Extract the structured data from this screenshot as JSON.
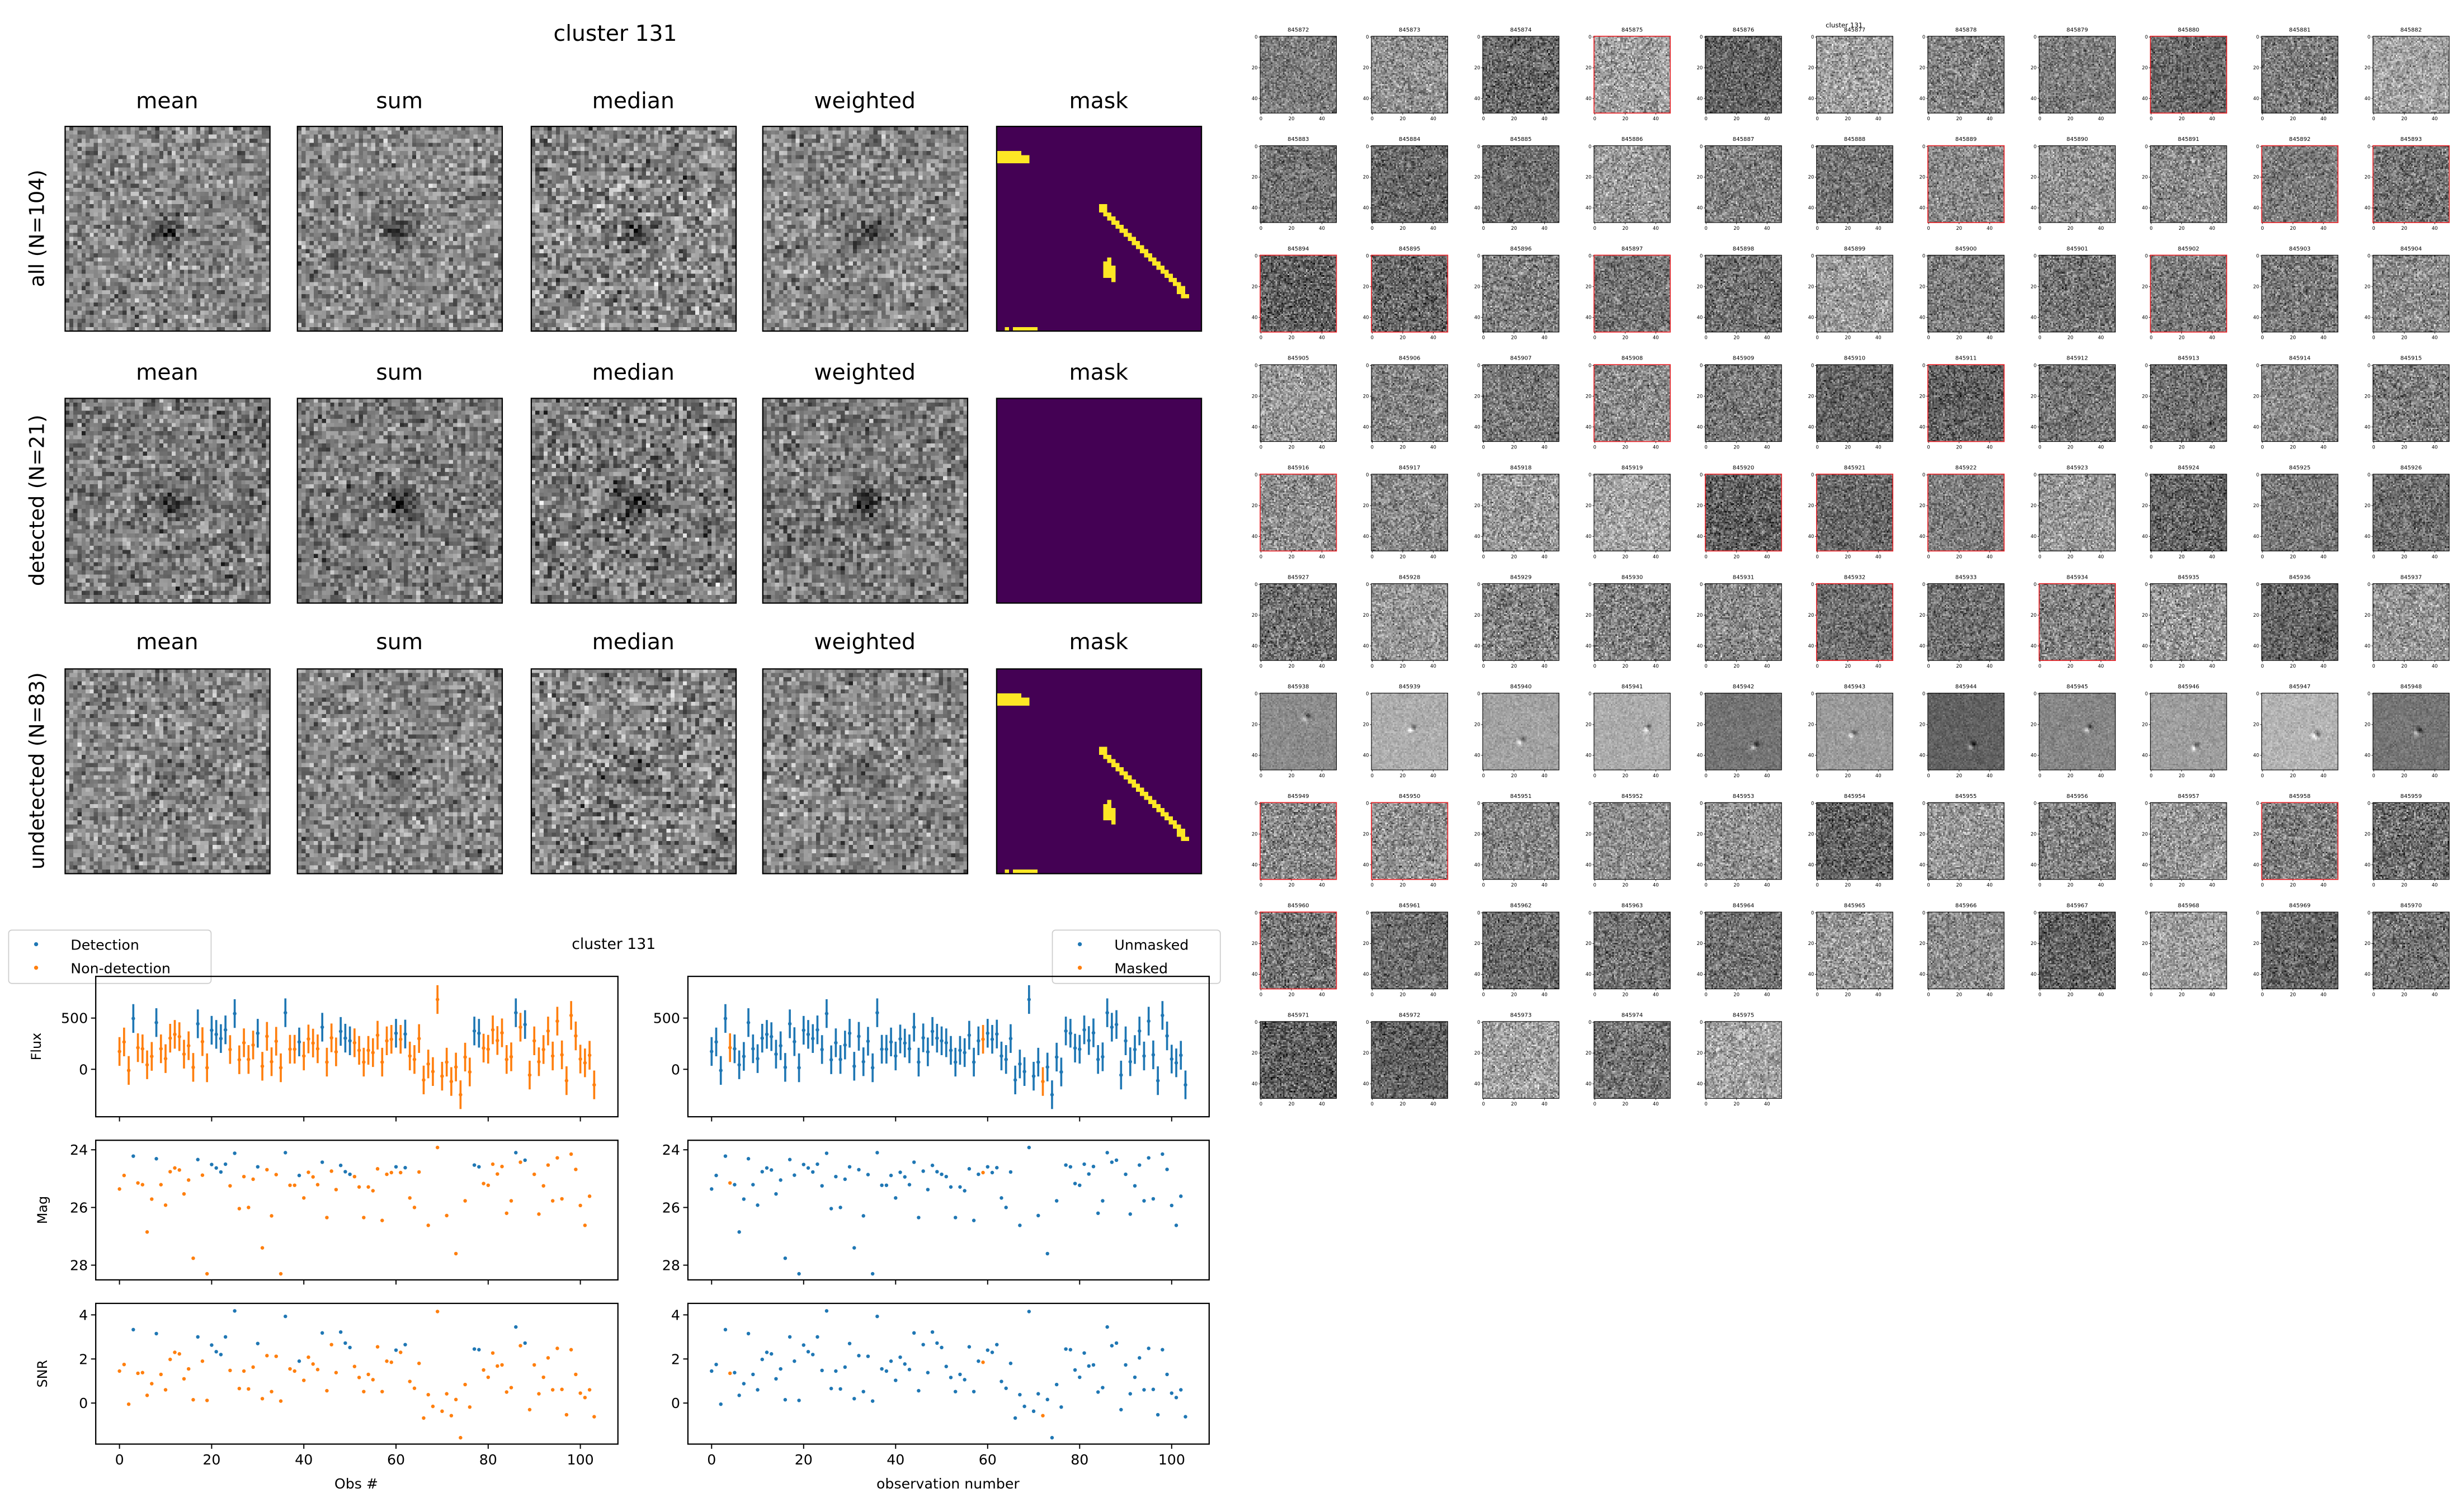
{
  "figure_title": "cluster 131",
  "stack": {
    "columns": [
      "mean",
      "sum",
      "median",
      "weighted",
      "mask"
    ],
    "rows": [
      {
        "label": "all (N=104)",
        "mask_has_pixels": true
      },
      {
        "label": "detected (N=21)",
        "mask_has_pixels": false
      },
      {
        "label": "undetected (N=83)",
        "mask_has_pixels": true
      }
    ]
  },
  "lightcurve": {
    "title": "cluster 131",
    "legend_left": [
      "Detection",
      "Non-detection"
    ],
    "legend_right": [
      "Unmasked",
      "Masked"
    ],
    "ylabels": [
      "Flux",
      "Mag",
      "SNR"
    ],
    "xlabel_left": "Obs #",
    "xlabel_right": "observation number"
  },
  "cutouts": {
    "title": "cluster 131",
    "ids": [
      "845872",
      "845873",
      "845874",
      "845875",
      "845876",
      "845877",
      "845878",
      "845879",
      "845880",
      "845881",
      "845882",
      "845883",
      "845884",
      "845885",
      "845886",
      "845887",
      "845888",
      "845889",
      "845890",
      "845891",
      "845892",
      "845893",
      "845894",
      "845895",
      "845896",
      "845897",
      "845898",
      "845899",
      "845900",
      "845901",
      "845902",
      "845903",
      "845904",
      "845905",
      "845906",
      "845907",
      "845908",
      "845909",
      "845910",
      "845911",
      "845912",
      "845913",
      "845914",
      "845915",
      "845916",
      "845917",
      "845918",
      "845919",
      "845920",
      "845921",
      "845922",
      "845923",
      "845924",
      "845925",
      "845926",
      "845927",
      "845928",
      "845929",
      "845930",
      "845931",
      "845932",
      "845933",
      "845934",
      "845935",
      "845936",
      "845937",
      "845938",
      "845939",
      "845940",
      "845941",
      "845942",
      "845943",
      "845944",
      "845945",
      "845946",
      "845947",
      "845948",
      "845949",
      "845950",
      "845951",
      "845952",
      "845953",
      "845954",
      "845955",
      "845956",
      "845957",
      "845958",
      "845959",
      "845960",
      "845961",
      "845962",
      "845963",
      "845964",
      "845965",
      "845966",
      "845967",
      "845968",
      "845969",
      "845970",
      "845971",
      "845972",
      "845973",
      "845974",
      "845975"
    ],
    "detected_ids": [
      "845875",
      "845880",
      "845889",
      "845892",
      "845893",
      "845894",
      "845895",
      "845897",
      "845902",
      "845908",
      "845911",
      "845916",
      "845920",
      "845921",
      "845922",
      "845932",
      "845934",
      "845949",
      "845950",
      "845958",
      "845960"
    ],
    "source_visible_ids": [
      "845938",
      "845939",
      "845940",
      "845941",
      "845942",
      "845943",
      "845944",
      "845945",
      "845946",
      "845947",
      "845948"
    ],
    "tick_labels": [
      "0",
      "20",
      "40"
    ]
  },
  "colors": {
    "detection": "#1f77b4",
    "non_detection": "#ff7f0e",
    "unmasked": "#1f77b4",
    "masked": "#ff7f0e",
    "mask_background": "#440154",
    "mask_foreground": "#fde725",
    "detected_frame": "#e8262b"
  },
  "chart_data": {
    "type": "scatter",
    "x_label_left": "Obs #",
    "x_label_right": "observation number",
    "xlim": [
      -5.15,
      108.15
    ],
    "xticks": [
      0,
      20,
      40,
      60,
      80,
      100
    ],
    "flux_err": 140,
    "detected_indices": [
      3,
      8,
      17,
      20,
      21,
      22,
      23,
      25,
      30,
      36,
      39,
      44,
      48,
      49,
      50,
      60,
      62,
      77,
      78,
      86,
      88
    ],
    "masked_indices": [
      4,
      59,
      72
    ],
    "panels": [
      {
        "name": "Flux",
        "ylim": [
          -463,
          907
        ],
        "yticks": [
          0,
          500
        ],
        "inverted": false
      },
      {
        "name": "Mag",
        "ylim": [
          28.51,
          23.67
        ],
        "yticks": [
          24,
          26,
          28
        ],
        "inverted": true
      },
      {
        "name": "SNR",
        "ylim": [
          -1.86,
          4.52
        ],
        "yticks": [
          0,
          2,
          4
        ],
        "inverted": false
      }
    ],
    "flux": [
      174,
      267,
      -11,
      496,
      211,
      200,
      44,
      126,
      456,
      200,
      104,
      304,
      341,
      319,
      148,
      230,
      19,
      444,
      270,
      15,
      381,
      341,
      300,
      385,
      193,
      544,
      93,
      259,
      96,
      237,
      352,
      30,
      322,
      74,
      274,
      15,
      552,
      196,
      196,
      267,
      130,
      296,
      256,
      200,
      411,
      70,
      307,
      170,
      370,
      304,
      278,
      259,
      185,
      70,
      185,
      163,
      333,
      70,
      278,
      293,
      352,
      293,
      344,
      130,
      96,
      300,
      -104,
      52,
      -22,
      681,
      -67,
      70,
      -119,
      22,
      -248,
      119,
      -26,
      374,
      352,
      207,
      196,
      385,
      281,
      356,
      96,
      122,
      552,
      411,
      437,
      -56,
      278,
      74,
      193,
      374,
      130,
      470,
      141,
      -111,
      526,
      326,
      100,
      63,
      137,
      -152
    ],
    "mag": [
      25.36,
      24.89,
      null,
      24.22,
      25.15,
      25.21,
      26.85,
      25.71,
      24.31,
      25.21,
      25.92,
      24.76,
      24.63,
      24.7,
      25.53,
      25.05,
      27.76,
      24.34,
      24.88,
      28.3,
      24.51,
      24.63,
      24.77,
      24.5,
      25.25,
      24.12,
      26.04,
      24.93,
      26.0,
      25.02,
      24.59,
      27.4,
      24.69,
      26.29,
      24.86,
      28.3,
      24.1,
      25.23,
      25.23,
      24.89,
      25.67,
      24.78,
      24.94,
      25.21,
      24.43,
      26.35,
      24.74,
      25.38,
      24.54,
      24.76,
      24.85,
      24.93,
      25.29,
      26.35,
      25.29,
      25.42,
      24.66,
      26.45,
      24.85,
      24.79,
      24.59,
      24.79,
      24.62,
      25.67,
      26.0,
      24.77,
      null,
      26.62,
      null,
      23.92,
      null,
      26.28,
      null,
      27.6,
      null,
      25.77,
      null,
      24.53,
      24.59,
      25.17,
      25.23,
      24.5,
      24.84,
      24.58,
      26.2,
      25.77,
      24.1,
      24.43,
      24.36,
      null,
      24.85,
      26.23,
      25.25,
      24.53,
      25.77,
      24.28,
      25.7,
      null,
      24.15,
      24.68,
      25.93,
      26.62,
      25.61,
      null
    ],
    "snr": [
      1.45,
      1.75,
      -0.05,
      3.33,
      1.35,
      1.38,
      0.35,
      0.88,
      3.15,
      1.3,
      0.6,
      1.98,
      2.3,
      2.23,
      1.1,
      1.55,
      0.15,
      3.0,
      1.9,
      0.12,
      2.63,
      2.33,
      2.2,
      3.0,
      1.48,
      4.18,
      0.66,
      1.45,
      0.64,
      1.63,
      2.7,
      0.2,
      2.15,
      0.52,
      2.12,
      0.09,
      3.93,
      1.55,
      1.45,
      1.9,
      1.03,
      2.08,
      1.77,
      1.52,
      3.18,
      0.56,
      2.65,
      1.38,
      3.22,
      2.72,
      2.52,
      1.66,
      1.16,
      0.52,
      1.3,
      1.06,
      2.55,
      0.52,
      1.9,
      1.85,
      2.4,
      2.3,
      2.65,
      0.98,
      0.67,
      1.8,
      -0.68,
      0.38,
      -0.15,
      4.15,
      -0.37,
      0.42,
      -0.57,
      0.16,
      -1.57,
      0.84,
      -0.18,
      2.45,
      2.42,
      1.5,
      1.17,
      2.27,
      1.68,
      1.73,
      0.5,
      0.7,
      3.45,
      2.6,
      2.72,
      -0.3,
      1.73,
      0.42,
      1.17,
      2.05,
      0.6,
      2.48,
      0.62,
      -0.53,
      2.42,
      1.3,
      0.45,
      0.25,
      0.6,
      -0.62
    ]
  }
}
